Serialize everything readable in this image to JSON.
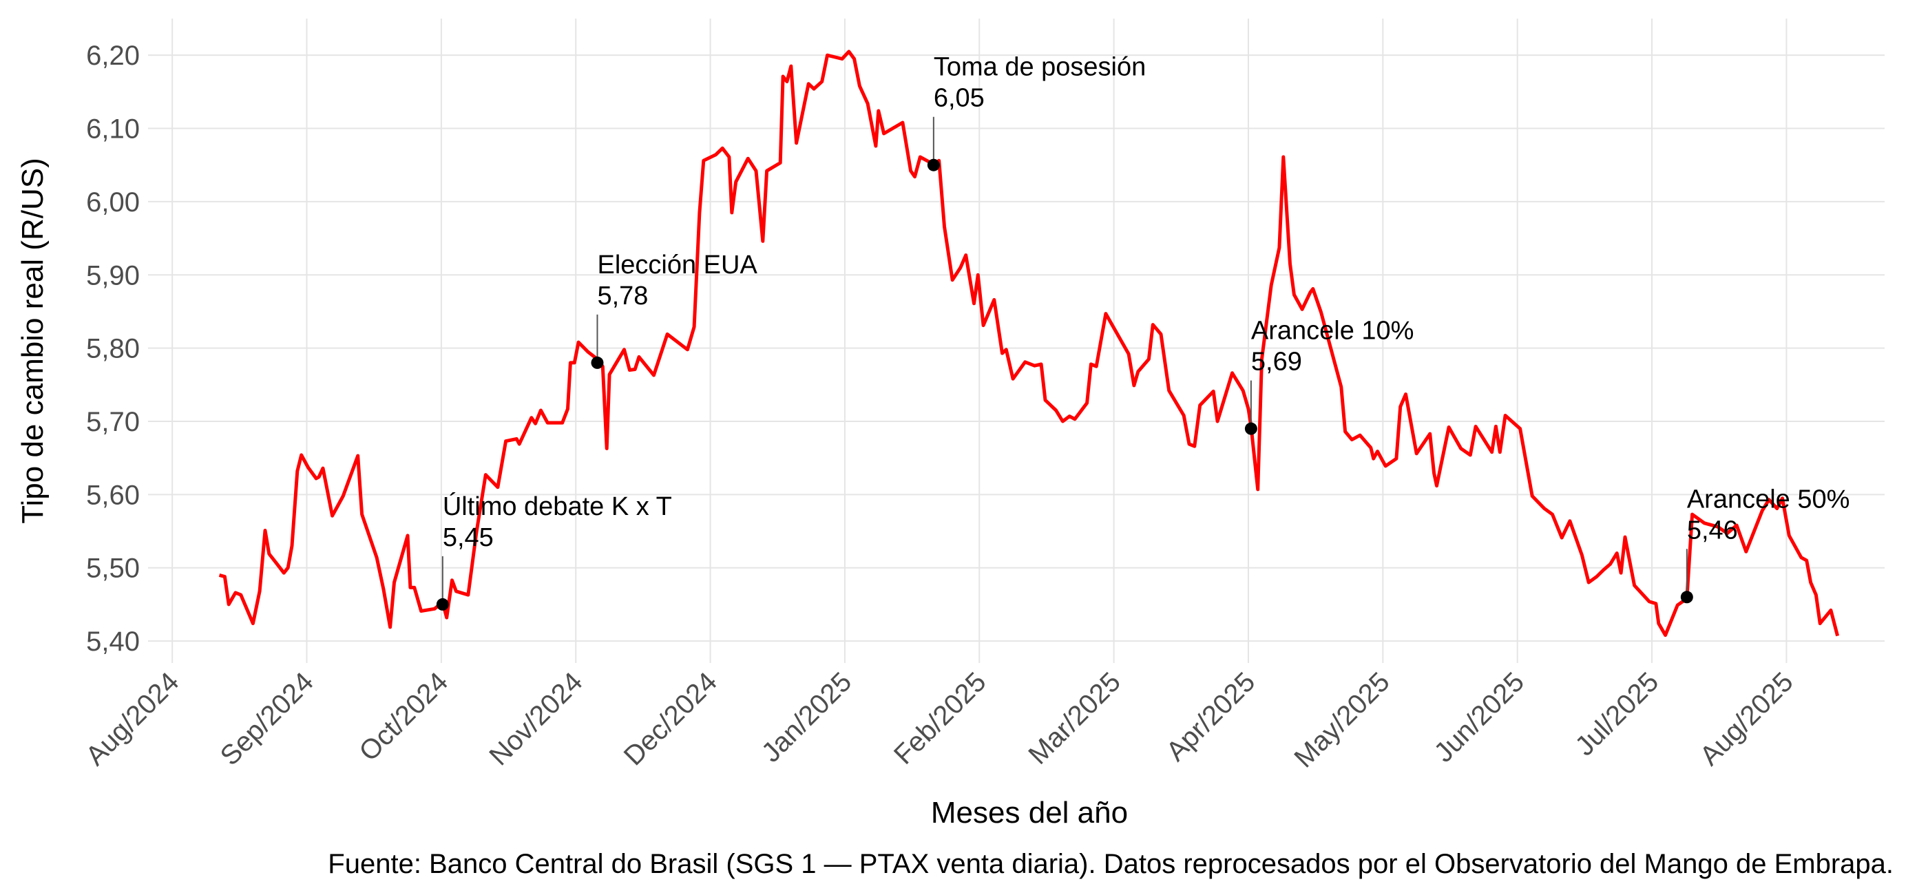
{
  "chart_data": {
    "type": "line",
    "y_label": "Tipo de cambio real (R/US)",
    "x_label": "Meses del año",
    "caption": "Fuente: Banco Central do Brasil (SGS 1 — PTAX venta diaria). Datos reprocesados por el Observatorio del Mango de Embrapa.",
    "color": "#ff0000",
    "grid": true,
    "xlim": [
      -0.18,
      12.73
    ],
    "ylim": [
      5.37,
      6.25
    ],
    "xticks": [
      {
        "value": 0,
        "label": "Aug/2024"
      },
      {
        "value": 1,
        "label": "Sep/2024"
      },
      {
        "value": 2,
        "label": "Oct/2024"
      },
      {
        "value": 3,
        "label": "Nov/2024"
      },
      {
        "value": 4,
        "label": "Dec/2024"
      },
      {
        "value": 5,
        "label": "Jan/2025"
      },
      {
        "value": 6,
        "label": "Feb/2025"
      },
      {
        "value": 7,
        "label": "Mar/2025"
      },
      {
        "value": 8,
        "label": "Apr/2025"
      },
      {
        "value": 9,
        "label": "May/2025"
      },
      {
        "value": 10,
        "label": "Jun/2025"
      },
      {
        "value": 11,
        "label": "Jul/2025"
      },
      {
        "value": 12,
        "label": "Aug/2025"
      }
    ],
    "yticks": [
      {
        "value": 5.4,
        "label": "5,40"
      },
      {
        "value": 5.5,
        "label": "5,50"
      },
      {
        "value": 5.6,
        "label": "5,60"
      },
      {
        "value": 5.7,
        "label": "5,70"
      },
      {
        "value": 5.8,
        "label": "5,80"
      },
      {
        "value": 5.9,
        "label": "5,90"
      },
      {
        "value": 6.0,
        "label": "6,00"
      },
      {
        "value": 6.1,
        "label": "6,10"
      },
      {
        "value": 6.2,
        "label": "6,20"
      }
    ],
    "x": [
      0.35,
      0.39,
      0.42,
      0.47,
      0.51,
      0.6,
      0.65,
      0.69,
      0.72,
      0.78,
      0.83,
      0.86,
      0.89,
      0.93,
      0.96,
      1.01,
      1.07,
      1.09,
      1.12,
      1.19,
      1.27,
      1.38,
      1.41,
      1.52,
      1.57,
      1.62,
      1.65,
      1.75,
      1.77,
      1.8,
      1.85,
      1.95,
      2.01,
      2.04,
      2.08,
      2.11,
      2.2,
      2.26,
      2.33,
      2.42,
      2.48,
      2.56,
      2.58,
      2.67,
      2.7,
      2.74,
      2.79,
      2.9,
      2.94,
      2.96,
      2.99,
      3.02,
      3.09,
      3.16,
      3.2,
      3.23,
      3.25,
      3.36,
      3.4,
      3.44,
      3.47,
      3.58,
      3.68,
      3.83,
      3.88,
      3.92,
      3.95,
      4.04,
      4.09,
      4.14,
      4.16,
      4.19,
      4.28,
      4.34,
      4.39,
      4.42,
      4.52,
      4.54,
      4.57,
      4.6,
      4.64,
      4.73,
      4.77,
      4.83,
      4.87,
      4.98,
      5.03,
      5.07,
      5.11,
      5.17,
      5.23,
      5.25,
      5.29,
      5.43,
      5.49,
      5.52,
      5.56,
      5.61,
      5.66,
      5.7,
      5.74,
      5.8,
      5.86,
      5.9,
      5.96,
      5.99,
      6.03,
      6.11,
      6.17,
      6.2,
      6.25,
      6.34,
      6.41,
      6.46,
      6.49,
      6.57,
      6.62,
      6.67,
      6.71,
      6.8,
      6.83,
      6.87,
      6.94,
      7.11,
      7.15,
      7.18,
      7.26,
      7.29,
      7.35,
      7.41,
      7.52,
      7.56,
      7.6,
      7.64,
      7.74,
      7.77,
      7.88,
      7.96,
      8.0,
      8.02,
      8.07,
      8.1,
      8.17,
      8.23,
      8.26,
      8.31,
      8.34,
      8.4,
      8.46,
      8.48,
      8.54,
      8.69,
      8.72,
      8.77,
      8.83,
      8.91,
      8.93,
      8.96,
      9.02,
      9.1,
      9.13,
      9.17,
      9.25,
      9.35,
      9.38,
      9.4,
      9.49,
      9.58,
      9.65,
      9.69,
      9.81,
      9.84,
      9.87,
      9.91,
      10.02,
      10.11,
      10.2,
      10.26,
      10.33,
      10.39,
      10.48,
      10.53,
      10.59,
      10.64,
      10.69,
      10.74,
      10.77,
      10.8,
      10.87,
      10.98,
      11.03,
      11.05,
      11.1,
      11.19,
      11.26,
      11.3,
      11.39,
      11.49,
      11.56,
      11.63,
      11.7,
      11.82,
      11.87,
      11.93,
      11.97,
      12.02,
      12.11,
      12.15,
      12.18,
      12.22,
      12.25,
      12.33,
      12.38
    ],
    "values": [
      5.49,
      5.488,
      5.45,
      5.466,
      5.463,
      5.424,
      5.468,
      5.551,
      5.519,
      5.505,
      5.493,
      5.5,
      5.53,
      5.632,
      5.654,
      5.637,
      5.622,
      5.624,
      5.636,
      5.571,
      5.598,
      5.653,
      5.573,
      5.514,
      5.471,
      5.419,
      5.48,
      5.544,
      5.473,
      5.473,
      5.441,
      5.444,
      5.453,
      5.432,
      5.483,
      5.468,
      5.463,
      5.547,
      5.627,
      5.61,
      5.673,
      5.676,
      5.669,
      5.705,
      5.697,
      5.715,
      5.698,
      5.698,
      5.717,
      5.78,
      5.78,
      5.808,
      5.795,
      5.785,
      5.775,
      5.663,
      5.764,
      5.798,
      5.77,
      5.771,
      5.788,
      5.763,
      5.819,
      5.798,
      5.829,
      5.985,
      6.056,
      6.064,
      6.073,
      6.061,
      5.985,
      6.027,
      6.059,
      6.042,
      5.946,
      6.042,
      6.053,
      6.171,
      6.164,
      6.185,
      6.08,
      6.161,
      6.154,
      6.164,
      6.2,
      6.195,
      6.205,
      6.195,
      6.158,
      6.134,
      6.076,
      6.124,
      6.093,
      6.108,
      6.042,
      6.034,
      6.061,
      6.056,
      6.051,
      6.056,
      5.966,
      5.893,
      5.91,
      5.927,
      5.861,
      5.9,
      5.831,
      5.866,
      5.793,
      5.798,
      5.758,
      5.781,
      5.776,
      5.778,
      5.729,
      5.715,
      5.7,
      5.707,
      5.703,
      5.725,
      5.778,
      5.775,
      5.847,
      5.792,
      5.749,
      5.768,
      5.785,
      5.832,
      5.819,
      5.742,
      5.708,
      5.669,
      5.666,
      5.722,
      5.741,
      5.7,
      5.766,
      5.742,
      5.717,
      5.693,
      5.607,
      5.785,
      5.886,
      5.937,
      6.061,
      5.915,
      5.873,
      5.853,
      5.876,
      5.881,
      5.849,
      5.747,
      5.686,
      5.675,
      5.681,
      5.664,
      5.649,
      5.659,
      5.639,
      5.649,
      5.72,
      5.737,
      5.656,
      5.683,
      5.629,
      5.612,
      5.692,
      5.663,
      5.654,
      5.693,
      5.658,
      5.693,
      5.658,
      5.708,
      5.69,
      5.598,
      5.581,
      5.573,
      5.541,
      5.564,
      5.517,
      5.48,
      5.488,
      5.497,
      5.505,
      5.52,
      5.493,
      5.542,
      5.476,
      5.454,
      5.451,
      5.424,
      5.408,
      5.449,
      5.458,
      5.573,
      5.561,
      5.556,
      5.547,
      5.558,
      5.522,
      5.578,
      5.593,
      5.581,
      5.595,
      5.544,
      5.514,
      5.51,
      5.48,
      5.463,
      5.424,
      5.442,
      5.407
    ],
    "annotations": [
      {
        "label": "Último debate K x T",
        "x": 2.01,
        "value": 5.45,
        "value_label": "5,45"
      },
      {
        "label": "Elección EUA",
        "x": 3.16,
        "value": 5.78,
        "value_label": "5,78"
      },
      {
        "label": "Toma de posesión",
        "x": 5.66,
        "value": 6.05,
        "value_label": "6,05"
      },
      {
        "label": "Arancele 10%",
        "x": 8.02,
        "value": 5.69,
        "value_label": "5,69"
      },
      {
        "label": "Arancele 50%",
        "x": 11.26,
        "value": 5.46,
        "value_label": "5,46"
      }
    ]
  }
}
